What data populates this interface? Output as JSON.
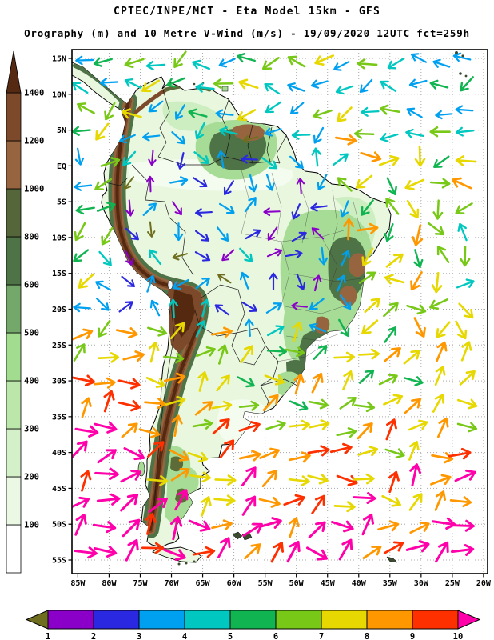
{
  "header": {
    "title_line1": "CPTEC/INPE/MCT - Eta Model 15km - GFS",
    "title_line2": "Orography (m) and 10 Metre V-Wind (m/s) - 19/09/2020 12UTC fct=259h",
    "title1_color": "#000000",
    "title2_color": "#009595"
  },
  "map": {
    "lat_labels": [
      "15N",
      "10N",
      "5N",
      "EQ",
      "5S",
      "10S",
      "15S",
      "20S",
      "25S",
      "30S",
      "35S",
      "40S",
      "45S",
      "50S",
      "55S"
    ],
    "lon_labels": [
      "85W",
      "80W",
      "75W",
      "70W",
      "65W",
      "60W",
      "55W",
      "50W",
      "45W",
      "40W",
      "35W",
      "30W",
      "25W",
      "20W"
    ],
    "grid_color": "#a8a8a8",
    "border_color": "#000000",
    "ocean_color": "#ffffff"
  },
  "orography_colorbar": {
    "unit": "m",
    "labels": [
      "100",
      "200",
      "300",
      "400",
      "500",
      "600",
      "800",
      "1000",
      "1200",
      "1400"
    ],
    "segment_colors": [
      "#ffffff",
      "#eaf8e4",
      "#d4f0c8",
      "#bce7ab",
      "#a2dc8f",
      "#74a76a",
      "#4e7347",
      "#55663a",
      "#96653f",
      "#7c4a2a"
    ],
    "arrow_color": "#562912"
  },
  "wind_colorbar": {
    "unit": "m/s",
    "labels": [
      "1",
      "2",
      "3",
      "4",
      "5",
      "6",
      "7",
      "8",
      "9",
      "10"
    ],
    "below_color": "#6e6e1e",
    "segment_colors": [
      "#8a00c8",
      "#2a28e0",
      "#00a0f0",
      "#00c8c0",
      "#10b450",
      "#78c818",
      "#e6d800",
      "#ff9800",
      "#ff3000"
    ],
    "above_color": "#ff00aa"
  },
  "terrain": {
    "base": "#e9f7df",
    "lowland": "#f4fbef",
    "light": "#cdeec0",
    "mid": "#a6dc96",
    "dark_green": "#4e7347",
    "olive": "#5c6b38",
    "tan": "#96653f",
    "brown": "#7c4a2a",
    "dark_brown": "#54290f",
    "island": "#3c4a30",
    "lake": "#f0f8ff"
  },
  "chart_data": {
    "type": "map",
    "title": "CPTEC/INPE/MCT - Eta Model 15km - GFS",
    "subtitle": "Orography (m) and 10 Metre V-Wind (m/s) - 19/09/2020 12UTC fct=259h",
    "region": "South America",
    "lat_axis": [
      "15N",
      "10N",
      "5N",
      "EQ",
      "5S",
      "10S",
      "15S",
      "20S",
      "25S",
      "30S",
      "35S",
      "40S",
      "45S",
      "50S",
      "55S"
    ],
    "lon_axis": [
      "85W",
      "80W",
      "75W",
      "70W",
      "65W",
      "60W",
      "55W",
      "50W",
      "45W",
      "40W",
      "35W",
      "30W",
      "25W",
      "20W"
    ],
    "orography_scale_m": [
      100,
      200,
      300,
      400,
      500,
      600,
      800,
      1000,
      1200,
      1400
    ],
    "wind_speed_scale_ms": [
      1,
      2,
      3,
      4,
      5,
      6,
      7,
      8,
      9,
      10
    ]
  }
}
